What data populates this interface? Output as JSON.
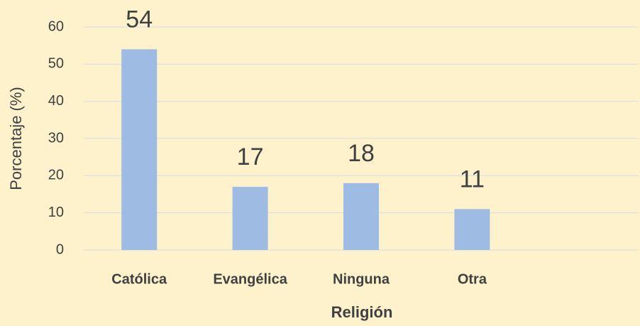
{
  "chart_data": {
    "type": "bar",
    "xlabel": "Religión",
    "ylabel": "Porcentaje (%)",
    "categories": [
      "Católica",
      "Evangélica",
      "Ninguna",
      "Otra",
      null
    ],
    "values": [
      54,
      17,
      18,
      11,
      null
    ],
    "color": "#9dbbe3",
    "ylim": [
      0,
      60
    ],
    "yticks": [
      0,
      10,
      20,
      30,
      40,
      50,
      60
    ],
    "grid": true
  }
}
